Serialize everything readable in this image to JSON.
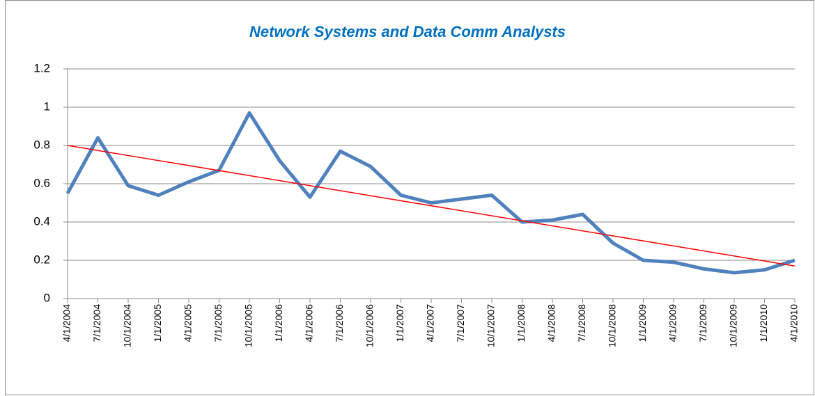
{
  "chart_data": {
    "type": "line",
    "title": "Network Systems and Data Comm Analysts",
    "categories": [
      "4/1/2004",
      "7/1/2004",
      "10/1/2004",
      "1/1/2005",
      "4/1/2005",
      "7/1/2005",
      "10/1/2005",
      "1/1/2006",
      "4/1/2006",
      "7/1/2006",
      "10/1/2006",
      "1/1/2007",
      "4/1/2007",
      "7/1/2007",
      "10/1/2007",
      "1/1/2008",
      "4/1/2008",
      "7/1/2008",
      "10/1/2008",
      "1/1/2009",
      "4/1/2009",
      "7/1/2009",
      "10/1/2009",
      "1/1/2010",
      "4/1/2010"
    ],
    "series": [
      {
        "color": "#4f81bd",
        "values": [
          0.55,
          0.84,
          0.59,
          0.54,
          0.61,
          0.67,
          0.97,
          0.72,
          0.53,
          0.77,
          0.69,
          0.54,
          0.5,
          0.52,
          0.54,
          0.4,
          0.41,
          0.44,
          0.29,
          0.2,
          0.19,
          0.155,
          0.135,
          0.15,
          0.2
        ]
      }
    ],
    "trendline": {
      "color": "#ff0000",
      "values": [
        0.8,
        0.17
      ]
    },
    "ylim": [
      0,
      1.2
    ],
    "yticks": [
      0,
      0.2,
      0.4,
      0.6,
      0.8,
      1,
      1.2
    ],
    "grid": true
  }
}
